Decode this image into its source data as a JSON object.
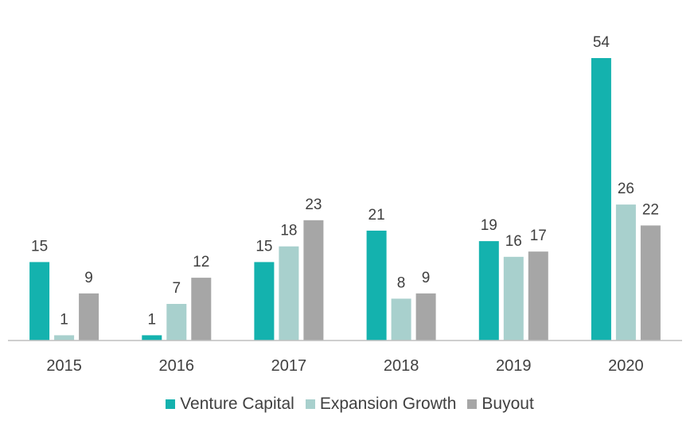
{
  "chart_data": {
    "type": "bar",
    "categories": [
      "2015",
      "2016",
      "2017",
      "2018",
      "2019",
      "2020"
    ],
    "series": [
      {
        "name": "Venture Capital",
        "color": "#14b2ae",
        "values": [
          15,
          1,
          15,
          21,
          19,
          54
        ]
      },
      {
        "name": "Expansion Growth",
        "color": "#a8d0cd",
        "values": [
          1,
          7,
          18,
          8,
          16,
          26
        ]
      },
      {
        "name": "Buyout",
        "color": "#a6a6a6",
        "values": [
          9,
          12,
          23,
          9,
          17,
          22
        ]
      }
    ],
    "title": "",
    "xlabel": "",
    "ylabel": "",
    "ylim": [
      0,
      55
    ],
    "grid": false,
    "data_labels": true,
    "legend_position": "bottom",
    "axis_color": "#bfbfbf"
  }
}
